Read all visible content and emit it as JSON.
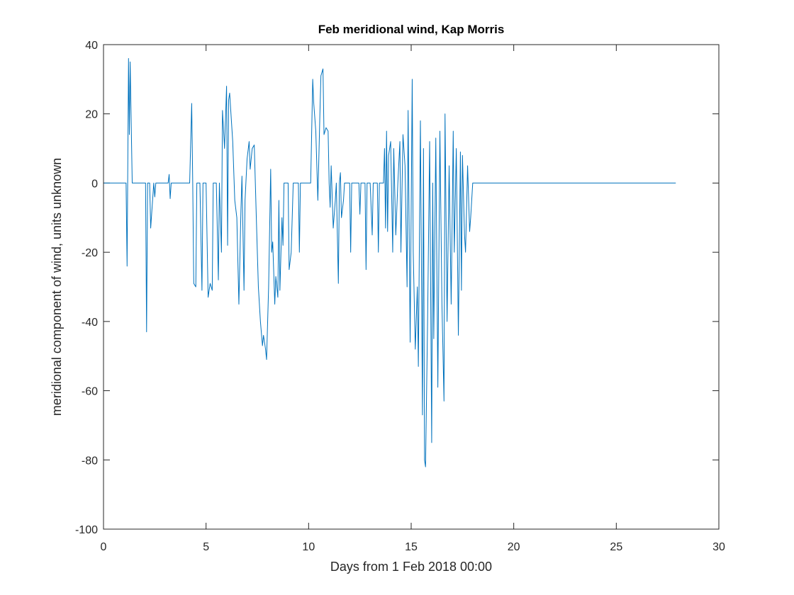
{
  "chart_data": {
    "type": "line",
    "title": "Feb meridional wind, Kap Morris",
    "x_label": "Days from 1 Feb 2018 00:00",
    "y_label": "meridional component of wind, units unknown",
    "color": "#0072bd",
    "xlim": [
      0,
      30
    ],
    "xticks": [
      0,
      5,
      10,
      15,
      20,
      25,
      30
    ],
    "ylim": [
      -100,
      40
    ],
    "yticks": [
      -100,
      -80,
      -60,
      -40,
      -20,
      0,
      20,
      40
    ],
    "x": [
      0,
      1.1,
      1.15,
      1.22,
      1.26,
      1.3,
      1.4,
      2.05,
      2.1,
      2.15,
      2.25,
      2.3,
      2.45,
      2.5,
      2.55,
      3.15,
      3.2,
      3.25,
      3.3,
      4.2,
      4.3,
      4.35,
      4.4,
      4.5,
      4.55,
      4.7,
      4.8,
      4.85,
      5.0,
      5.1,
      5.2,
      5.3,
      5.35,
      5.5,
      5.6,
      5.65,
      5.75,
      5.8,
      5.9,
      6.0,
      6.05,
      6.1,
      6.15,
      6.3,
      6.4,
      6.5,
      6.6,
      6.7,
      6.75,
      6.85,
      6.9,
      7.0,
      7.1,
      7.15,
      7.25,
      7.35,
      7.45,
      7.55,
      7.65,
      7.75,
      7.8,
      7.9,
      7.95,
      8.05,
      8.15,
      8.2,
      8.25,
      8.35,
      8.4,
      8.5,
      8.55,
      8.6,
      8.7,
      8.75,
      8.8,
      9.0,
      9.05,
      9.15,
      9.2,
      9.25,
      9.5,
      9.55,
      9.6,
      10.1,
      10.2,
      10.25,
      10.35,
      10.45,
      10.55,
      10.6,
      10.7,
      10.75,
      10.85,
      10.95,
      11.0,
      11.05,
      11.1,
      11.2,
      11.3,
      11.35,
      11.45,
      11.5,
      11.55,
      11.6,
      11.7,
      11.75,
      12.0,
      12.05,
      12.1,
      12.45,
      12.5,
      12.55,
      12.75,
      12.8,
      12.85,
      13.0,
      13.1,
      13.15,
      13.35,
      13.4,
      13.45,
      13.65,
      13.7,
      13.75,
      13.8,
      13.85,
      13.9,
      14.0,
      14.1,
      14.15,
      14.25,
      14.35,
      14.45,
      14.5,
      14.6,
      14.7,
      14.8,
      14.85,
      14.95,
      15.05,
      15.1,
      15.2,
      15.3,
      15.35,
      15.45,
      15.55,
      15.6,
      15.65,
      15.7,
      15.8,
      15.9,
      16.0,
      16.05,
      16.1,
      16.2,
      16.3,
      16.4,
      16.5,
      16.6,
      16.65,
      16.75,
      16.85,
      16.95,
      17.05,
      17.1,
      17.2,
      17.3,
      17.4,
      17.45,
      17.5,
      17.6,
      17.65,
      17.75,
      17.85,
      17.9,
      18.0,
      27.9
    ],
    "values": [
      0,
      0,
      -24,
      36,
      14,
      35,
      0,
      0,
      -43,
      0,
      0,
      -13,
      0,
      -4,
      0,
      0,
      2.5,
      -4.5,
      0,
      0,
      23,
      0,
      -29,
      -30,
      0,
      0,
      -31,
      0,
      0,
      -33,
      -29,
      -31,
      0,
      0,
      -28,
      0,
      -20,
      21,
      10,
      28,
      -18,
      24,
      26,
      12,
      -5,
      -10,
      -35,
      -8,
      2,
      -31,
      -5,
      7,
      12,
      4,
      10,
      11,
      -10,
      -30,
      -40,
      -47,
      -44,
      -48,
      -51,
      -30,
      4,
      -20,
      -17,
      -35,
      -27,
      -33,
      -5,
      -31,
      -10,
      -18,
      0,
      0,
      -25,
      -20,
      -10,
      0,
      0,
      -20,
      0,
      0,
      30,
      23,
      15,
      -5,
      20,
      31,
      33,
      14,
      16,
      15,
      0,
      -7,
      5,
      -13,
      -5,
      0,
      -29,
      0,
      3,
      -10,
      -5,
      0,
      0,
      -20,
      0,
      0,
      -9,
      0,
      0,
      -25,
      0,
      0,
      -15,
      0,
      0,
      -20,
      0,
      0,
      10,
      -13,
      15,
      -14,
      8,
      12,
      -20,
      10,
      -15,
      0,
      12,
      -20,
      14,
      5,
      -30,
      21,
      -46,
      30,
      -20,
      -48,
      -30,
      -53,
      18,
      -67,
      10,
      -80,
      -82,
      -40,
      12,
      -75,
      0,
      -45,
      13,
      -59,
      15,
      -35,
      -63,
      20,
      -40,
      5,
      -35,
      15,
      -20,
      10,
      -44,
      9,
      -31,
      8,
      -15,
      -20,
      5,
      -14,
      -10,
      0,
      0
    ]
  }
}
